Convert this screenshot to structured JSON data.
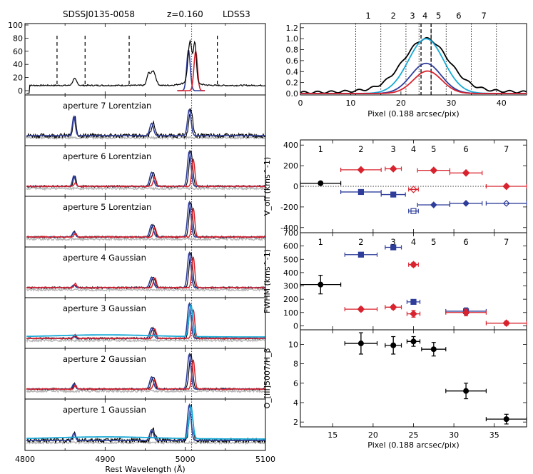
{
  "colors": {
    "black": "#000000",
    "blue": "#2e3d9a",
    "red": "#d8232e",
    "cyan": "#17a9d6",
    "gray": "#b5b5b5"
  },
  "header": {
    "object": "SDSSJ0135-0058",
    "redshift": "z=0.160",
    "instrument": "LDSS3"
  },
  "chart_data": [
    {
      "id": "spectra-stack",
      "type": "line",
      "xlabel": "Rest Wavelength (Å)",
      "xlim": [
        4800,
        5100
      ],
      "xticks": [
        "4800",
        "4900",
        "5000",
        "5100"
      ],
      "line_center": 5008,
      "top_panel": {
        "ylim": [
          0,
          100
        ],
        "yticks": [
          "0",
          "20",
          "40",
          "60",
          "80",
          "100"
        ],
        "window_markers": [
          4840,
          4875,
          4930,
          5040
        ]
      },
      "apertures": [
        {
          "label": "aperture 7 Lorentzian",
          "n": 7,
          "hb": [
            0.55,
            "blue"
          ],
          "o3a": [
            0.35,
            "blue"
          ],
          "o3b": [
            0.75,
            "blue"
          ],
          "red_scale": 0.0
        },
        {
          "label": "aperture 6 Lorentzian",
          "n": 6,
          "hb": [
            0.3,
            "blue"
          ],
          "o3a": [
            0.4,
            "blue"
          ],
          "o3b": [
            1.0,
            "blue"
          ],
          "red_scale": 0.85
        },
        {
          "label": "aperture 5 Lorentzian",
          "n": 5,
          "hb": [
            0.15,
            "blue"
          ],
          "o3a": [
            0.35,
            "blue"
          ],
          "o3b": [
            1.0,
            "blue"
          ],
          "red_scale": 0.9
        },
        {
          "label": "aperture 4 Gaussian",
          "n": 4,
          "hb": [
            0.08,
            "blue"
          ],
          "o3a": [
            0.3,
            "black"
          ],
          "o3b": [
            1.0,
            "black"
          ],
          "red_scale": 0.95
        },
        {
          "label": "aperture 3 Gaussian",
          "n": 3,
          "hb": [
            0.05,
            "blue"
          ],
          "o3a": [
            0.3,
            "blue"
          ],
          "o3b": [
            1.0,
            "cyan"
          ],
          "red_scale": 0.9
        },
        {
          "label": "aperture 2 Gaussian",
          "n": 2,
          "hb": [
            0.15,
            "red"
          ],
          "o3a": [
            0.35,
            "blue"
          ],
          "o3b": [
            1.0,
            "blue"
          ],
          "red_scale": 0.9
        },
        {
          "label": "aperture 1 Gaussian",
          "n": 1,
          "hb": [
            0.2,
            "black"
          ],
          "o3a": [
            0.3,
            "black"
          ],
          "o3b": [
            1.0,
            "cyan"
          ],
          "red_scale": 0.0
        }
      ]
    },
    {
      "id": "spatial-profile",
      "type": "line",
      "xlabel": "Pixel (0.188 arcsec/pix)",
      "xlim": [
        0,
        45
      ],
      "ylim": [
        0,
        1.25
      ],
      "xticks": [
        "0",
        "10",
        "20",
        "30",
        "40"
      ],
      "yticks": [
        "0.0",
        "0.2",
        "0.4",
        "0.6",
        "0.8",
        "1.0",
        "1.2"
      ],
      "aperture_edges": [
        11,
        16,
        21,
        23.6,
        26,
        29,
        34,
        39
      ],
      "aperture_labels": [
        "1",
        "2",
        "3",
        "4",
        "5",
        "6",
        "7"
      ],
      "center_dashes": [
        24,
        26
      ],
      "series": [
        {
          "name": "total",
          "color": "black",
          "peak": 1.0,
          "center": 25,
          "width": 4.3
        },
        {
          "name": "cyan",
          "color": "cyan",
          "peak": 1.0,
          "center": 25,
          "width": 3.5
        },
        {
          "name": "blue",
          "color": "blue",
          "peak": 0.55,
          "center": 25,
          "width": 3.0
        },
        {
          "name": "red",
          "color": "red",
          "peak": 0.41,
          "center": 25.3,
          "width": 2.8
        }
      ]
    },
    {
      "id": "voff",
      "type": "scatter",
      "ylabel": "V_off (kms^-1)",
      "xlim": [
        11,
        39
      ],
      "ylim": [
        -450,
        450
      ],
      "yticks": [
        "-400",
        "-200",
        "0",
        "200",
        "400"
      ],
      "aperture_labels": [
        "1",
        "2",
        "3",
        "4",
        "5",
        "6",
        "7"
      ],
      "series": [
        {
          "name": "black",
          "color": "black",
          "points": [
            [
              13.5,
              30,
              2.5
            ]
          ]
        },
        {
          "name": "red",
          "color": "red",
          "points": [
            [
              18.5,
              160,
              2.5
            ],
            [
              22.5,
              170,
              1
            ],
            [
              25,
              -30,
              0.6
            ],
            [
              27.5,
              155,
              2
            ],
            [
              31.5,
              130,
              2
            ],
            [
              36.5,
              0,
              2.5
            ]
          ]
        },
        {
          "name": "blue",
          "color": "blue",
          "points": [
            [
              18.5,
              -55,
              2.5
            ],
            [
              22.5,
              -80,
              1.5
            ],
            [
              25,
              -240,
              0.6
            ],
            [
              27.5,
              -180,
              2
            ],
            [
              31.5,
              -165,
              2
            ],
            [
              36.5,
              -165,
              2.5
            ]
          ]
        }
      ]
    },
    {
      "id": "fwhm",
      "type": "scatter",
      "ylabel": "FWHM (kms^-1)",
      "xlim": [
        11,
        39
      ],
      "ylim": [
        -30,
        700
      ],
      "yticks": [
        "0",
        "100",
        "200",
        "300",
        "400",
        "500",
        "600",
        "700"
      ],
      "aperture_labels": [
        "1",
        "2",
        "3",
        "4",
        "5",
        "6",
        "7"
      ],
      "series": [
        {
          "name": "black",
          "color": "black",
          "points": [
            [
              13.5,
              310,
              2.5
            ]
          ]
        },
        {
          "name": "blue",
          "color": "blue",
          "points": [
            [
              18.5,
              535,
              2
            ],
            [
              22.5,
              590,
              1
            ],
            [
              25,
              180,
              0.8
            ],
            [
              31.5,
              110,
              2.5
            ]
          ]
        },
        {
          "name": "red",
          "color": "red",
          "points": [
            [
              18.5,
              125,
              2
            ],
            [
              22.5,
              140,
              1
            ],
            [
              25,
              460,
              0.6
            ],
            [
              25,
              90,
              0.8
            ],
            [
              31.5,
              100,
              2.5
            ],
            [
              36.5,
              20,
              2.5
            ]
          ]
        }
      ]
    },
    {
      "id": "ratio",
      "type": "scatter",
      "ylabel": "O_[III]5007/H_β",
      "xlabel": "Pixel (0.188 arcsec/pix)",
      "xlim": [
        11,
        39
      ],
      "ylim": [
        1.5,
        11.5
      ],
      "xticks": [
        "15",
        "20",
        "25",
        "30",
        "35"
      ],
      "yticks": [
        "2",
        "4",
        "6",
        "8",
        "10"
      ],
      "series": [
        {
          "name": "black",
          "color": "black",
          "points": [
            [
              18.5,
              10.1,
              2
            ],
            [
              22.5,
              9.9,
              1
            ],
            [
              25,
              10.3,
              0.8
            ],
            [
              27.5,
              9.5,
              1.5
            ],
            [
              31.5,
              5.2,
              2.5
            ],
            [
              36.5,
              2.3,
              2.5
            ]
          ]
        }
      ]
    }
  ]
}
